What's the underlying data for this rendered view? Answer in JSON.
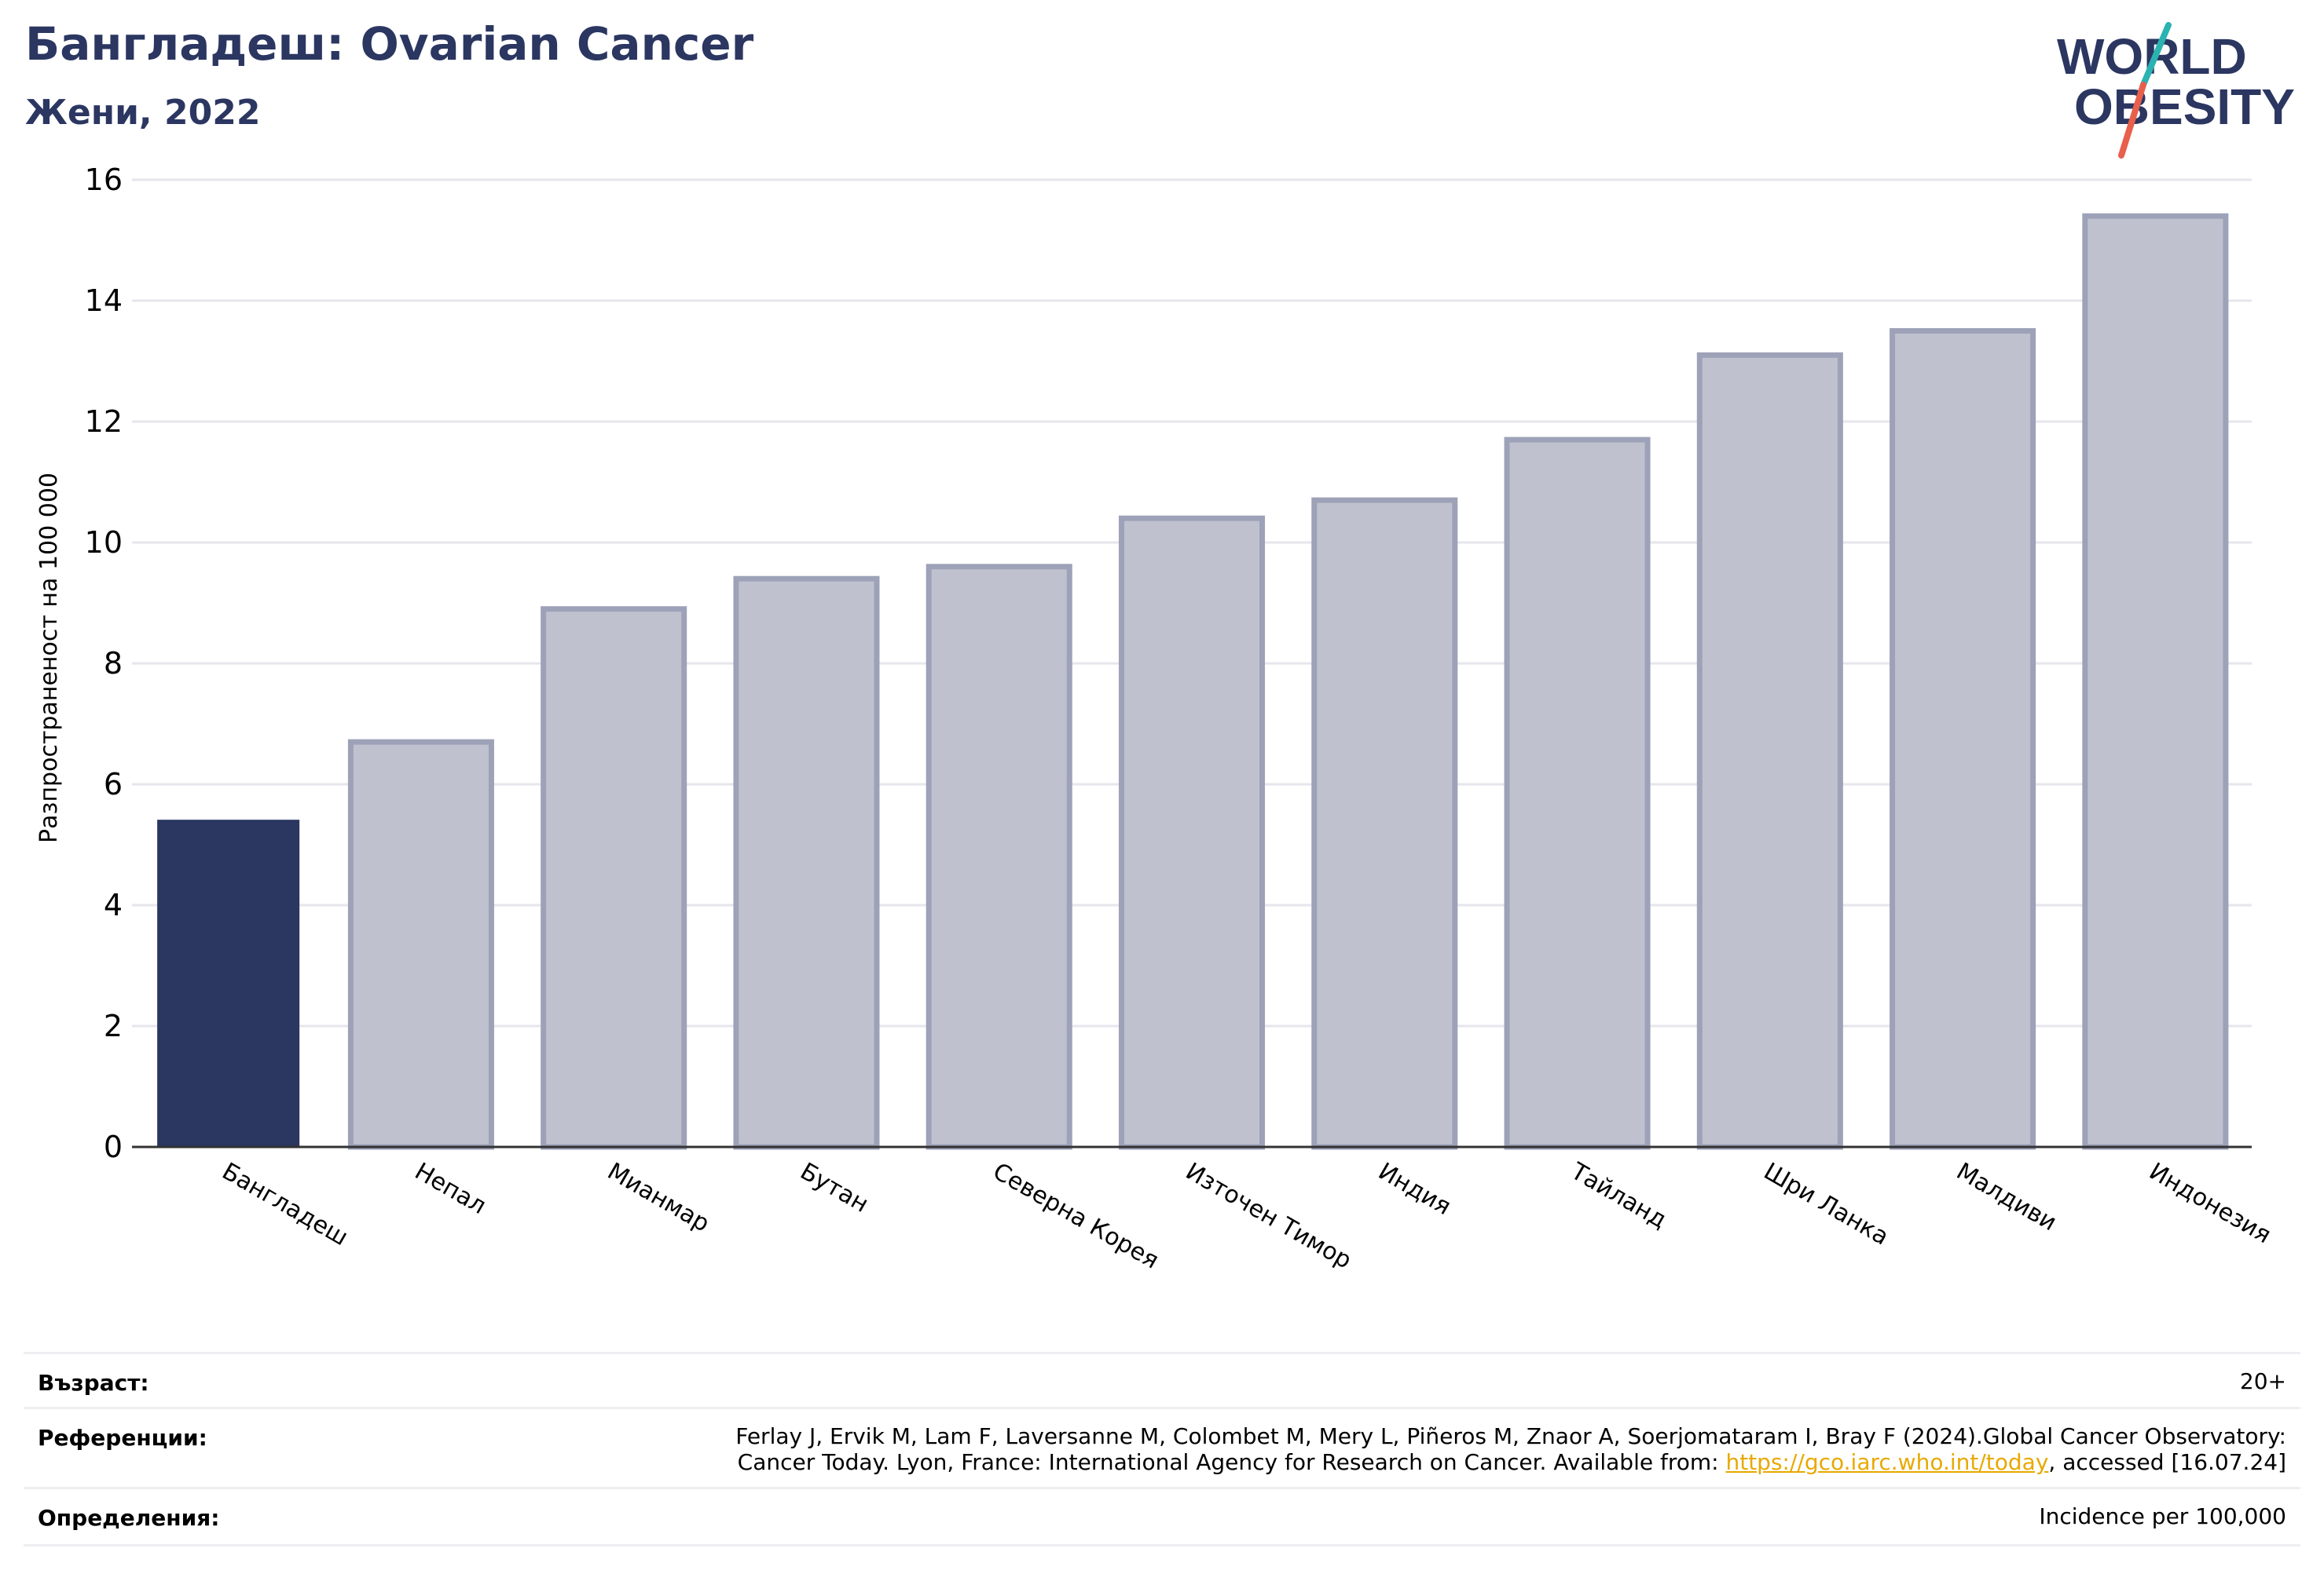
{
  "header": {
    "title": "Бангладеш: Ovarian Cancer",
    "subtitle": "Жени, 2022"
  },
  "logo": {
    "line1": "WORLD",
    "line2": "OBESITY",
    "text_color": "#2b3661",
    "slash_color_top": "#2ab3b1",
    "slash_color_bottom": "#e8604c"
  },
  "chart_data": {
    "type": "bar",
    "title": "Бангладеш: Ovarian Cancer",
    "ylabel": "Разпространеност  на 100 000",
    "xlabel": "",
    "ylim": [
      0,
      16
    ],
    "yticks": [
      0,
      2,
      4,
      6,
      8,
      10,
      12,
      14,
      16
    ],
    "grid": true,
    "categories": [
      "Бангладеш",
      "Непал",
      "Мианмар",
      "Бутан",
      "Северна Корея",
      "Източен Тимор",
      "Индия",
      "Тайланд",
      "Шри Ланка",
      "Малдиви",
      "Индонезия"
    ],
    "values": [
      5.4,
      6.7,
      8.9,
      9.4,
      9.6,
      10.4,
      10.7,
      11.7,
      13.1,
      13.5,
      15.4
    ],
    "highlight_index": 0,
    "colors": {
      "highlight": "#2b3661",
      "bar_fill": "#bfc2ce",
      "bar_stroke": "#9ea2b8",
      "grid": "#e6e6ec",
      "axis": "#333333"
    }
  },
  "footer": {
    "age_label": "Възраст:",
    "age_value": "20+",
    "refs_label": "Референции:",
    "refs_line1": "Ferlay J, Ervik M, Lam F, Laversanne M, Colombet M, Mery L, Piñeros M, Znaor A, Soerjomataram I, Bray F (2024).Global Cancer Observatory:",
    "refs_line2_pre": "Cancer Today. Lyon, France: International Agency for Research on Cancer. Available from: ",
    "refs_link": "https://gco.iarc.who.int/today",
    "refs_line2_post": ", accessed [16.07.24]",
    "defs_label": "Определения:",
    "defs_value": "Incidence per 100,000"
  }
}
